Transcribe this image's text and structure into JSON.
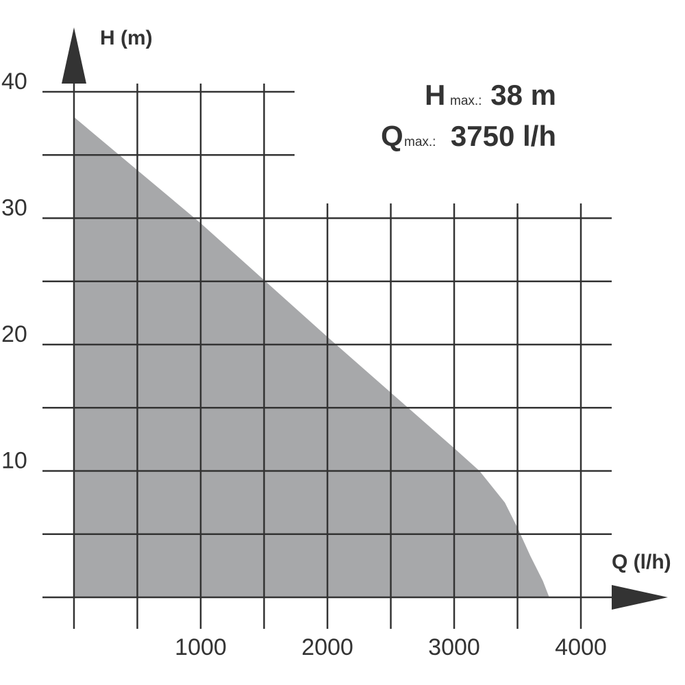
{
  "chart_data": {
    "type": "area",
    "x_label": "Q (l/h)",
    "y_label": "H (m)",
    "annotations": [
      {
        "symbol": "H",
        "sub": "max.:",
        "text": "38 m"
      },
      {
        "symbol": "Q",
        "sub": "max.:",
        "text": "3750 l/h"
      }
    ],
    "x": [
      0,
      1000,
      2000,
      3000,
      3200,
      3400,
      3500,
      3600,
      3700,
      3750
    ],
    "values": [
      38,
      29.6,
      20.6,
      11.8,
      10,
      7.5,
      5.5,
      3.3,
      1.3,
      0
    ],
    "color": "#a7a8aa",
    "xlim": [
      0,
      4000
    ],
    "ylim": [
      0,
      40
    ],
    "xticks": [
      1000,
      2000,
      3000,
      4000
    ],
    "yticks": [
      10,
      20,
      30,
      40
    ],
    "xgrid": [
      0,
      500,
      1000,
      1500,
      2000,
      2500,
      3000,
      3500,
      4000
    ],
    "ygrid": [
      0,
      5,
      10,
      15,
      20,
      25,
      30,
      35,
      40
    ],
    "grid": true
  }
}
